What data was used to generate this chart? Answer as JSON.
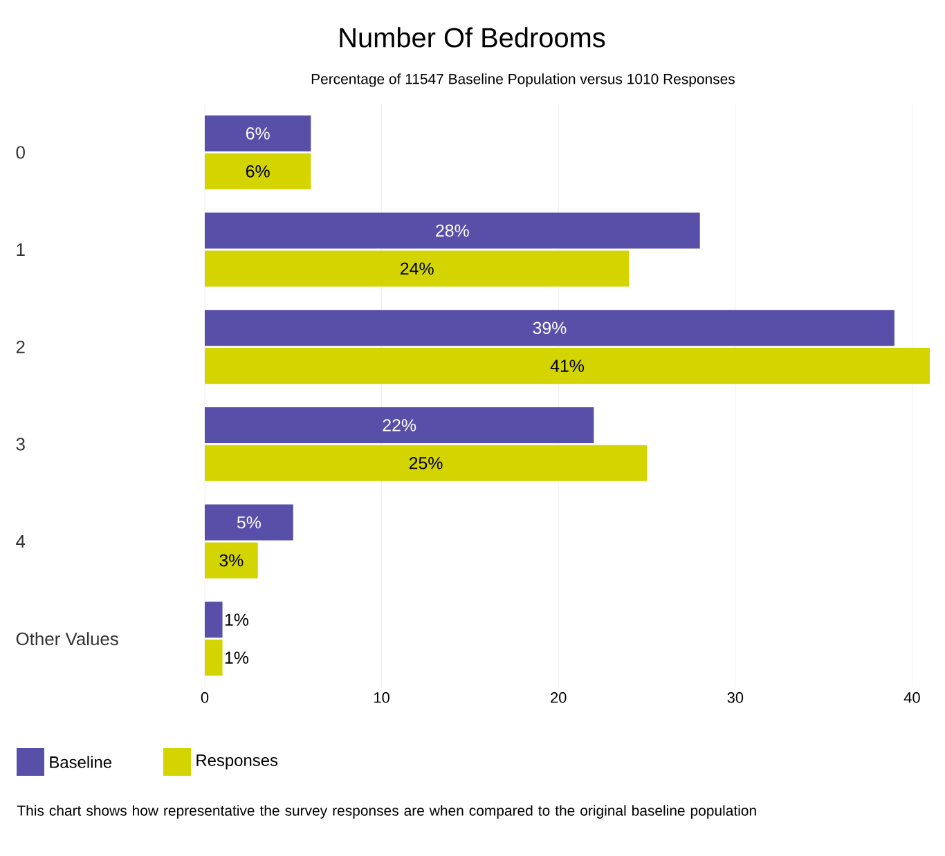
{
  "chart_data": {
    "type": "bar",
    "orientation": "horizontal",
    "title": "Number Of Bedrooms",
    "subtitle": "Percentage of 11547 Baseline Population versus 1010 Responses",
    "categories": [
      "0",
      "1",
      "2",
      "3",
      "4",
      "Other Values"
    ],
    "series": [
      {
        "name": "Baseline",
        "color": "#5850a8",
        "values": [
          6,
          28,
          39,
          22,
          5,
          1
        ],
        "value_labels": [
          "6%",
          "28%",
          "39%",
          "22%",
          "5%",
          "1%"
        ]
      },
      {
        "name": "Responses",
        "color": "#d4d400",
        "values": [
          6,
          24,
          41,
          25,
          3,
          1
        ],
        "value_labels": [
          "6%",
          "24%",
          "41%",
          "25%",
          "3%",
          "1%"
        ]
      }
    ],
    "xlim": [
      0,
      41
    ],
    "xticks": [
      0,
      10,
      20,
      30,
      40
    ],
    "grid": "x",
    "legend": "bottom left",
    "annotations": [
      "This chart shows how representative the survey responses are when compared to the original baseline population"
    ]
  }
}
